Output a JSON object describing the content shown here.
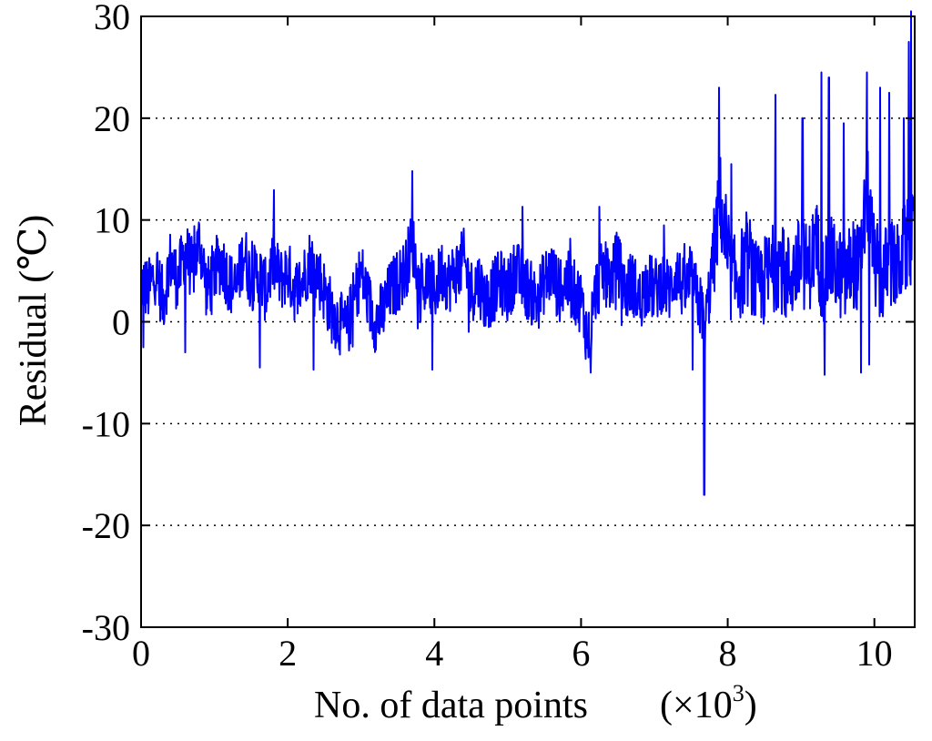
{
  "chart_data": {
    "type": "line",
    "title": "",
    "xlabel": "No. of data points",
    "xlabel_unit_prefix": "(",
    "xlabel_unit_symbol": "×",
    "xlabel_unit_base": "10",
    "xlabel_unit_exp": "3",
    "xlabel_unit_suffix": ")",
    "ylabel": "Residual (℃)",
    "xlim": [
      0,
      10.55
    ],
    "ylim": [
      -30,
      30
    ],
    "xticks": [
      0,
      2,
      4,
      6,
      8,
      10
    ],
    "xtick_labels": [
      "0",
      "2",
      "4",
      "6",
      "8",
      "10"
    ],
    "yticks": [
      -30,
      -20,
      -10,
      0,
      10,
      20,
      30
    ],
    "ytick_labels": [
      "-30",
      "-20",
      "-10",
      "0",
      "10",
      "20",
      "30"
    ],
    "grid": "horizontal dotted at y ticks",
    "line_color": "#0000ff",
    "series": [
      {
        "x": [
          0.0,
          0.1,
          0.2,
          0.3,
          0.4,
          0.5,
          0.6,
          0.7,
          0.8,
          0.9,
          1.0,
          1.1,
          1.2,
          1.3,
          1.4,
          1.5,
          1.6,
          1.7,
          1.8,
          1.9,
          2.0,
          2.1,
          2.2,
          2.3,
          2.4,
          2.5,
          2.6,
          2.7,
          2.8,
          2.9,
          3.0,
          3.1,
          3.2,
          3.3,
          3.4,
          3.5,
          3.6,
          3.7,
          3.8,
          3.9,
          4.0,
          4.1,
          4.2,
          4.3,
          4.4,
          4.5,
          4.6,
          4.7,
          4.8,
          4.9,
          5.0,
          5.1,
          5.2,
          5.3,
          5.4,
          5.5,
          5.6,
          5.7,
          5.8,
          5.9,
          6.0,
          6.1,
          6.2,
          6.3,
          6.4,
          6.5,
          6.6,
          6.7,
          6.8,
          6.9,
          7.0,
          7.1,
          7.2,
          7.3,
          7.4,
          7.5,
          7.6,
          7.7,
          7.8,
          7.9,
          8.0,
          8.1,
          8.2,
          8.3,
          8.4,
          8.5,
          8.6,
          8.7,
          8.8,
          8.9,
          9.0,
          9.1,
          9.2,
          9.3,
          9.4,
          9.5,
          9.6,
          9.7,
          9.8,
          9.9,
          10.0,
          10.1,
          10.2,
          10.3,
          10.4,
          10.5
        ],
        "y": [
          4,
          3,
          5,
          2,
          6,
          4,
          7,
          5,
          8,
          3,
          5,
          6,
          4,
          3,
          7,
          4,
          5,
          3,
          6,
          4,
          5,
          3,
          4,
          6,
          5,
          3,
          1,
          0,
          -1,
          2,
          5,
          2,
          0,
          1,
          3,
          4,
          5,
          8,
          3,
          4,
          3,
          5,
          4,
          5,
          6,
          3,
          4,
          2,
          3,
          4,
          3,
          5,
          4,
          3,
          2,
          4,
          5,
          3,
          4,
          3,
          2,
          -2,
          3,
          5,
          4,
          6,
          3,
          4,
          2,
          4,
          3,
          4,
          3,
          5,
          3,
          4,
          2,
          0,
          6,
          12,
          5,
          4,
          5,
          6,
          3,
          4,
          5,
          6,
          4,
          5,
          6,
          5,
          8,
          4,
          6,
          5,
          4,
          6,
          5,
          13,
          6,
          4,
          6,
          5,
          7,
          8
        ]
      }
    ],
    "annotations": {
      "min_spike": {
        "x": 7.68,
        "y": -17
      },
      "spikes": [
        {
          "x": 0.03,
          "y": -2.5
        },
        {
          "x": 0.6,
          "y": -3
        },
        {
          "x": 1.62,
          "y": -4.5
        },
        {
          "x": 2.35,
          "y": -4.7
        },
        {
          "x": 3.7,
          "y": 14.8
        },
        {
          "x": 3.97,
          "y": -4.7
        },
        {
          "x": 5.2,
          "y": 11.3
        },
        {
          "x": 6.13,
          "y": -5
        },
        {
          "x": 6.25,
          "y": 11.3
        },
        {
          "x": 7.52,
          "y": -4.7
        },
        {
          "x": 7.88,
          "y": 23
        },
        {
          "x": 8.05,
          "y": 15.5
        },
        {
          "x": 8.65,
          "y": 22.3
        },
        {
          "x": 9.02,
          "y": 20
        },
        {
          "x": 9.28,
          "y": 24.5
        },
        {
          "x": 9.32,
          "y": -5.2
        },
        {
          "x": 9.38,
          "y": 24
        },
        {
          "x": 9.58,
          "y": 19.5
        },
        {
          "x": 9.82,
          "y": -5
        },
        {
          "x": 9.9,
          "y": 24.5
        },
        {
          "x": 9.93,
          "y": -4.2
        },
        {
          "x": 10.08,
          "y": 23
        },
        {
          "x": 10.2,
          "y": 22.5
        },
        {
          "x": 10.4,
          "y": 20
        },
        {
          "x": 10.47,
          "y": 27.5
        },
        {
          "x": 10.5,
          "y": 30.5
        }
      ]
    }
  }
}
